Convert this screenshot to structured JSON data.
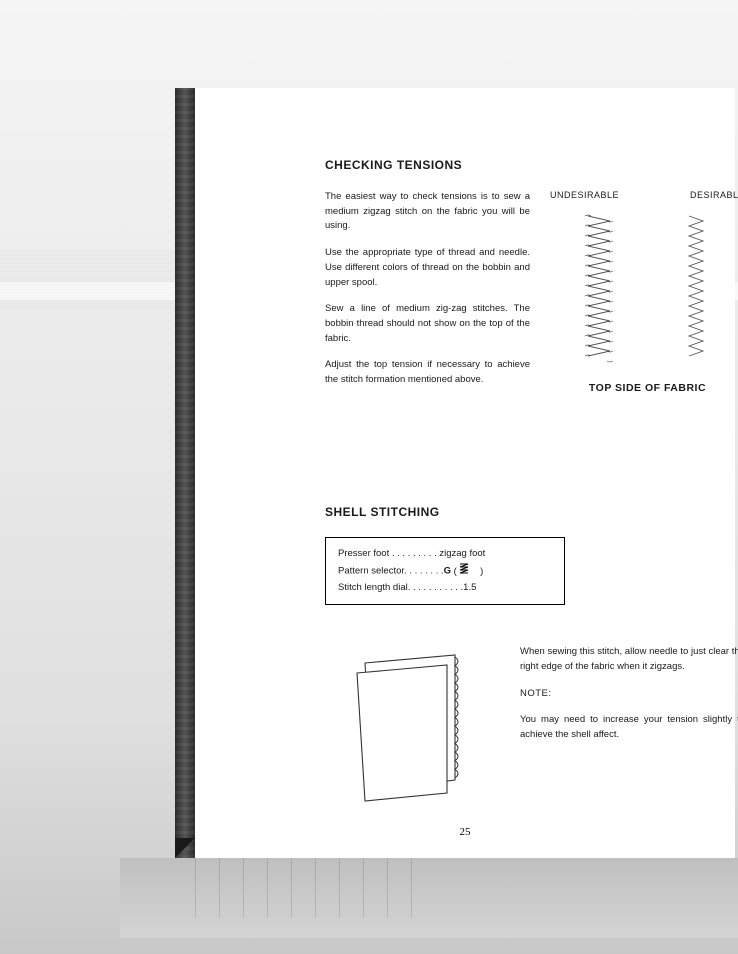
{
  "page_number": "25",
  "section1": {
    "heading": "CHECKING TENSIONS",
    "paragraphs": [
      "The easiest way to check tensions is to sew a medium zigzag stitch on the fabric you will be using.",
      "Use the appropriate type of thread and needle. Use different colors of thread on the bobbin and upper spool.",
      "Sew a line of medium zig-zag stitches. The bobbin thread should not show on the top of the fabric.",
      "Adjust the top tension if necessary to achieve the stitch formation mentioned above."
    ],
    "label_undesirable": "UNDESIRABLE",
    "label_desirable": "DESIRABLE",
    "caption": "TOP SIDE OF FABRIC",
    "stitch": {
      "stroke": "#555555",
      "stroke_width": 0.9,
      "undesirable_width": 22,
      "desirable_width": 14,
      "segment_h": 10,
      "count": 14
    }
  },
  "section2": {
    "heading": "SHELL STITCHING",
    "settings": [
      {
        "label": "Presser foot",
        "dots": " . . . . . . . . . ",
        "value": "zigzag foot"
      },
      {
        "label": "Pattern selector",
        "dots": ". . . . . . . .",
        "value": "G"
      },
      {
        "label": "Stitch length dial",
        "dots": ". . . . . . . . . . .",
        "value": "1.5"
      }
    ],
    "paragraphs": [
      "When sewing this stitch, allow needle to just clear the right edge of the fabric when it zigzags."
    ],
    "note_label": "NOTE:",
    "note_text": "You may need to increase your tension slightly to achieve the shell affect.",
    "illus": {
      "stroke": "#333333",
      "stroke_width": 1.1,
      "scallop_count": 14
    }
  },
  "colors": {
    "text": "#1a1a1a",
    "page_bg": "#ffffff",
    "spine": "#3d3d3d"
  }
}
